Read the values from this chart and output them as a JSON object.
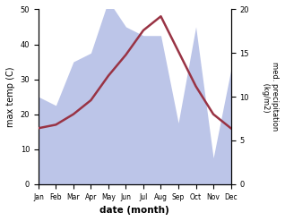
{
  "months": [
    "Jan",
    "Feb",
    "Mar",
    "Apr",
    "May",
    "Jun",
    "Jul",
    "Aug",
    "Sep",
    "Oct",
    "Nov",
    "Dec"
  ],
  "temp": [
    16,
    17,
    20,
    24,
    31,
    37,
    44,
    48,
    38,
    28,
    20,
    16
  ],
  "precip": [
    10,
    9,
    14,
    15,
    21,
    18,
    17,
    17,
    7,
    18,
    3,
    13
  ],
  "temp_color": "#993344",
  "precip_fill_color": "#bcc5e8",
  "left_ylabel": "max temp (C)",
  "right_ylabel": "med. precipitation\n (kg/m2)",
  "xlabel": "date (month)",
  "ylim_left": [
    0,
    50
  ],
  "ylim_right": [
    0,
    20
  ],
  "left_yticks": [
    0,
    10,
    20,
    30,
    40,
    50
  ],
  "right_yticks": [
    0,
    5,
    10,
    15,
    20
  ]
}
